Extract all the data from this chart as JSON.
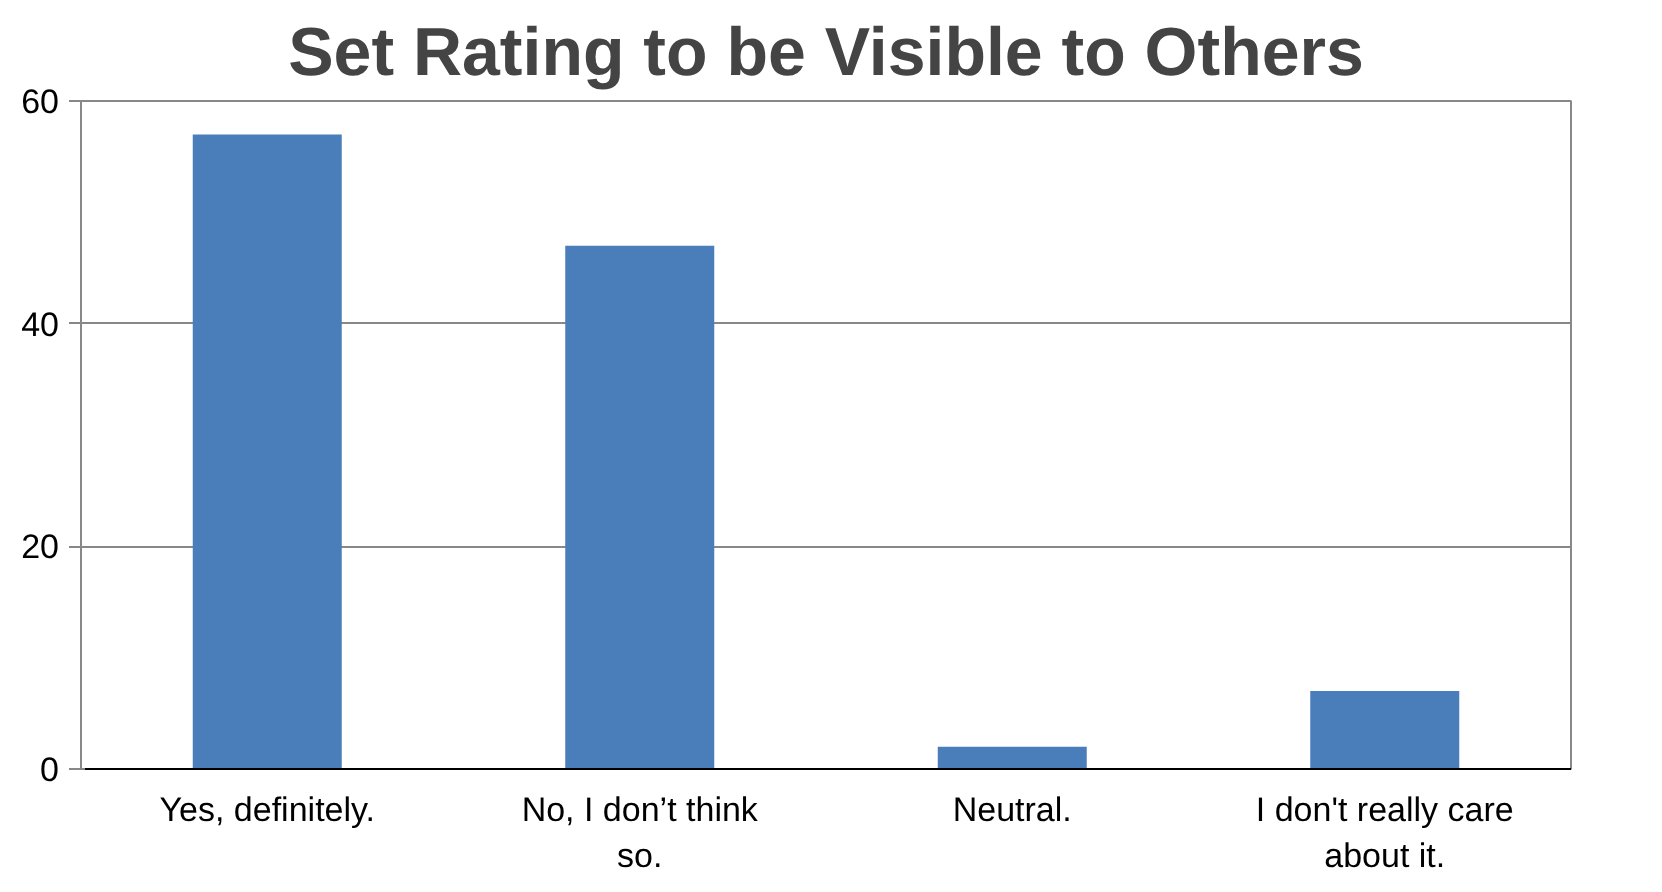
{
  "chart_data": {
    "type": "bar",
    "title": "Set Rating to be Visible to Others",
    "categories": [
      "Yes, definitely.",
      "No, I don’t think so.",
      "Neutral.",
      "I don't really care about it."
    ],
    "values": [
      57,
      47,
      2,
      7
    ],
    "color": "#4a7ebb",
    "ylim": [
      0,
      60
    ],
    "yticks": [
      0,
      20,
      40,
      60
    ],
    "grid": "y"
  }
}
